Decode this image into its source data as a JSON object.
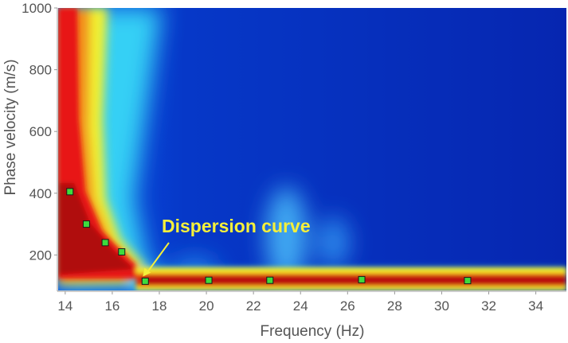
{
  "chart_data": {
    "type": "heatmap",
    "title": "",
    "xlabel": "Frequency (Hz)",
    "ylabel": "Phase velocity (m/s)",
    "xlim": [
      13.7,
      35.3
    ],
    "ylim": [
      85,
      1000
    ],
    "x_ticks": [
      "14",
      "16",
      "18",
      "20",
      "22",
      "24",
      "26",
      "28",
      "30",
      "32",
      "34"
    ],
    "y_ticks": [
      "200",
      "400",
      "600",
      "800",
      "1000"
    ],
    "colormap": "jet",
    "grid": false,
    "annotation": {
      "text": "Dispersion curve",
      "points_to": [
        17.3,
        130
      ]
    },
    "series": [
      {
        "marker": "square",
        "color": "#3ddc3d",
        "x": [
          14.2,
          14.9,
          15.7,
          16.4,
          17.4,
          20.1,
          22.7,
          26.6,
          31.1
        ],
        "y": [
          405,
          300,
          240,
          210,
          115,
          118,
          118,
          120,
          117
        ]
      }
    ]
  }
}
